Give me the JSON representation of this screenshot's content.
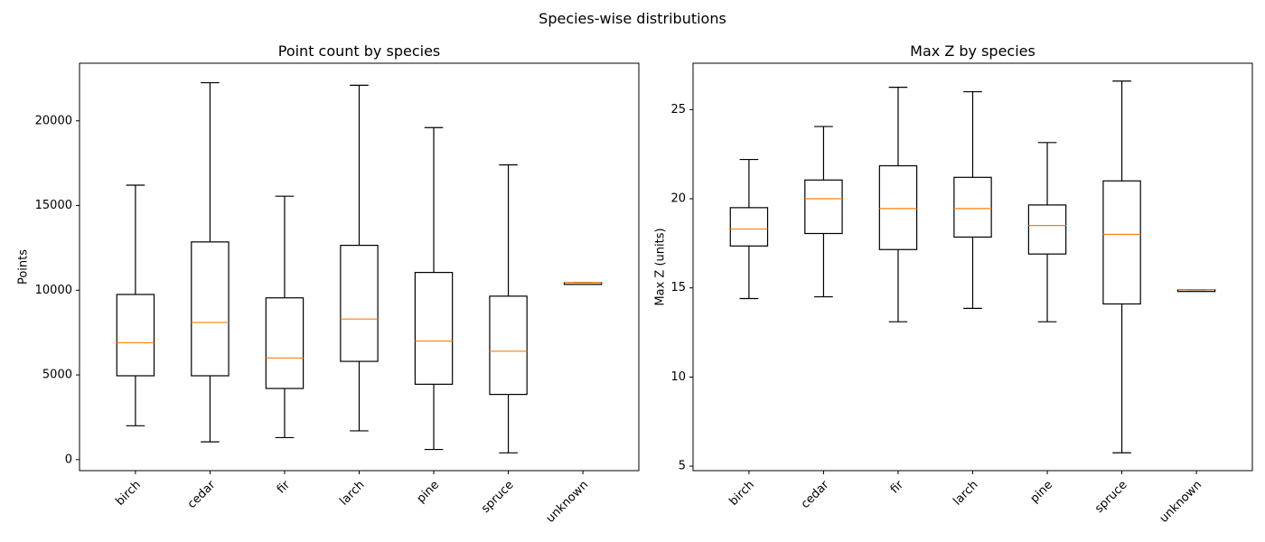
{
  "figure": {
    "suptitle": "Species-wise distributions"
  },
  "chart_data": [
    {
      "type": "box",
      "title": "Point count by species",
      "xlabel": "",
      "ylabel": "Points",
      "categories": [
        "birch",
        "cedar",
        "fir",
        "larch",
        "pine",
        "spruce",
        "unknown"
      ],
      "ylim": [
        -650,
        23400
      ],
      "yticks": [
        0,
        5000,
        10000,
        15000,
        20000
      ],
      "boxes": [
        {
          "category": "birch",
          "whisker_low": 2000,
          "q1": 4950,
          "median": 6900,
          "q3": 9750,
          "whisker_high": 16200
        },
        {
          "category": "cedar",
          "whisker_low": 1050,
          "q1": 4950,
          "median": 8100,
          "q3": 12850,
          "whisker_high": 22250
        },
        {
          "category": "fir",
          "whisker_low": 1300,
          "q1": 4200,
          "median": 6000,
          "q3": 9550,
          "whisker_high": 15550
        },
        {
          "category": "larch",
          "whisker_low": 1700,
          "q1": 5800,
          "median": 8300,
          "q3": 12650,
          "whisker_high": 22100
        },
        {
          "category": "pine",
          "whisker_low": 600,
          "q1": 4450,
          "median": 7000,
          "q3": 11050,
          "whisker_high": 19600
        },
        {
          "category": "spruce",
          "whisker_low": 400,
          "q1": 3850,
          "median": 6400,
          "q3": 9650,
          "whisker_high": 17400
        },
        {
          "category": "unknown",
          "whisker_low": 10450,
          "q1": 10450,
          "median": 10450,
          "q3": 10450,
          "whisker_high": 10450
        }
      ],
      "colors": {
        "box": "#000000",
        "median": "#ff7f0e"
      },
      "grid": false
    },
    {
      "type": "box",
      "title": "Max Z by species",
      "xlabel": "",
      "ylabel": "Max Z (units)",
      "categories": [
        "birch",
        "cedar",
        "fir",
        "larch",
        "pine",
        "spruce",
        "unknown"
      ],
      "ylim": [
        4.75,
        27.6
      ],
      "yticks": [
        5,
        10,
        15,
        20,
        25
      ],
      "boxes": [
        {
          "category": "birch",
          "whisker_low": 14.4,
          "q1": 17.35,
          "median": 18.3,
          "q3": 19.5,
          "whisker_high": 22.2
        },
        {
          "category": "cedar",
          "whisker_low": 14.5,
          "q1": 18.05,
          "median": 20.0,
          "q3": 21.05,
          "whisker_high": 24.05
        },
        {
          "category": "fir",
          "whisker_low": 13.1,
          "q1": 17.15,
          "median": 19.45,
          "q3": 21.85,
          "whisker_high": 26.25
        },
        {
          "category": "larch",
          "whisker_low": 13.85,
          "q1": 17.85,
          "median": 19.45,
          "q3": 21.2,
          "whisker_high": 26.0
        },
        {
          "category": "pine",
          "whisker_low": 13.1,
          "q1": 16.9,
          "median": 18.5,
          "q3": 19.65,
          "whisker_high": 23.15
        },
        {
          "category": "spruce",
          "whisker_low": 5.75,
          "q1": 14.1,
          "median": 18.0,
          "q3": 21.0,
          "whisker_high": 26.6
        },
        {
          "category": "unknown",
          "whisker_low": 14.9,
          "q1": 14.9,
          "median": 14.9,
          "q3": 14.9,
          "whisker_high": 14.9
        }
      ],
      "colors": {
        "box": "#000000",
        "median": "#ff7f0e"
      },
      "grid": false
    }
  ]
}
